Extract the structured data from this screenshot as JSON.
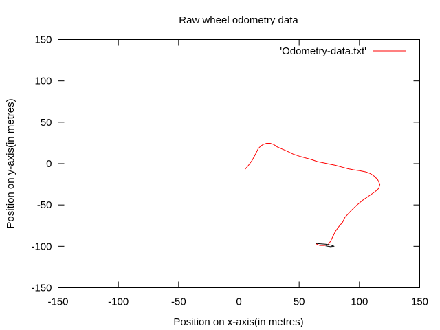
{
  "chart_data": {
    "type": "line",
    "title": "Raw wheel odometry data",
    "xlabel": "Position on x-axis(in metres)",
    "ylabel": "Position on y-axis(in metres)",
    "xlim": [
      -150,
      150
    ],
    "ylim": [
      -150,
      150
    ],
    "xticks": [
      -150,
      -100,
      -50,
      0,
      50,
      100,
      150
    ],
    "yticks": [
      -150,
      -100,
      -50,
      0,
      50,
      100,
      150
    ],
    "xtick_labels": [
      "-150",
      "-100",
      "-50",
      "0",
      "50",
      "100",
      "150"
    ],
    "ytick_labels": [
      "-150",
      "-100",
      "-50",
      "0",
      "50",
      "100",
      "150"
    ],
    "grid": false,
    "legend_position": "top-right",
    "series": [
      {
        "name": "'Odometry-data.txt'",
        "color": "#ff0000",
        "points": [
          [
            5,
            -7
          ],
          [
            8,
            -2
          ],
          [
            11,
            4
          ],
          [
            14,
            12
          ],
          [
            16,
            18
          ],
          [
            18,
            21
          ],
          [
            20,
            23
          ],
          [
            23,
            24.5
          ],
          [
            26,
            24.5
          ],
          [
            29,
            23
          ],
          [
            32,
            20
          ],
          [
            36,
            17.5
          ],
          [
            40,
            15
          ],
          [
            45,
            11.5
          ],
          [
            50,
            9
          ],
          [
            55,
            7
          ],
          [
            60,
            5
          ],
          [
            65,
            2.5
          ],
          [
            70,
            1
          ],
          [
            75,
            -0.5
          ],
          [
            80,
            -2
          ],
          [
            85,
            -4
          ],
          [
            90,
            -6
          ],
          [
            95,
            -7.5
          ],
          [
            100,
            -8.5
          ],
          [
            105,
            -10
          ],
          [
            109,
            -12
          ],
          [
            112,
            -15
          ],
          [
            115,
            -19
          ],
          [
            117,
            -25
          ],
          [
            116,
            -30
          ],
          [
            113,
            -34
          ],
          [
            108,
            -39
          ],
          [
            103,
            -44
          ],
          [
            98,
            -50
          ],
          [
            93,
            -57
          ],
          [
            88,
            -65
          ],
          [
            86,
            -71
          ],
          [
            83,
            -76
          ],
          [
            80,
            -82
          ],
          [
            78,
            -88
          ],
          [
            76,
            -94
          ],
          [
            74,
            -98
          ],
          [
            71,
            -99
          ],
          [
            67,
            -99
          ],
          [
            64,
            -97
          ]
        ]
      },
      {
        "name": "",
        "color": "#000000",
        "points": [
          [
            64,
            -96.5
          ],
          [
            68,
            -97
          ],
          [
            72,
            -97.5
          ],
          [
            76,
            -98.5
          ],
          [
            79,
            -100
          ],
          [
            76,
            -100.5
          ],
          [
            72,
            -99.5
          ]
        ]
      }
    ]
  }
}
